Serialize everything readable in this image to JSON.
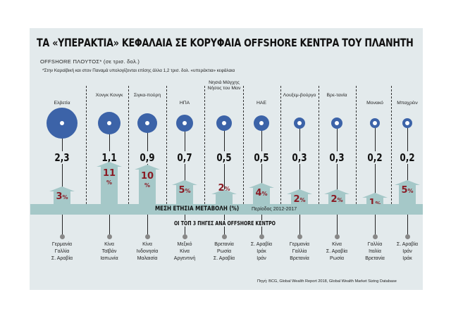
{
  "title": "ΤΑ «ΥΠΕΡΑΚΤΙΑ» ΚΕΦΑΛΑΙΑ ΣΕ ΚΟΡΥΦΑΙΑ OFFSHORE ΚΕΝΤΡΑ ΤΟΥ ΠΛΑΝΗΤΗ",
  "subtitle": "OFFSHORE ΠΛΟΥΤΟΣ* (σε τρισ. δολ.)",
  "footnote": "*Στην Καραϊβική και στον Παναμά υπολογίζονται επίσης άλλα 1,2 τρισ. δολ. «υπεράκτια» κεφάλαια",
  "band_label": "ΜΕΣΗ ΕΤΗΣΙΑ ΜΕΤΑΒΟΛΗ (%)",
  "period": "Περίοδος 2012-2017",
  "top3_label": "ΟΙ ΤΟΠ 3 ΠΗΓΕΣ ΑΝΑ OFFSHORE ΚΕΝΤΡΟ",
  "source": "Πηγή: BCG, Global Wealth Report 2018, Global Wealth Market Sizing Database",
  "colors": {
    "circle": "#3c63a8",
    "pct": "#8a1b24",
    "arrow": "#a5c8c8",
    "panel": "#e3eaec"
  },
  "chart_data": {
    "type": "bubble",
    "centers": [
      {
        "name": "Ελβετία",
        "wealth": "2,3",
        "change": 3,
        "sources": [
          "Γερμανία",
          "Γαλλία",
          "Σ. Αραβία"
        ]
      },
      {
        "name": "Χονγκ Κονγκ",
        "wealth": "1,1",
        "change": 11,
        "sources": [
          "Κίνα",
          "Ταϊβάν",
          "Ιαπωνία"
        ]
      },
      {
        "name": "Σιγκα-πούρη",
        "wealth": "0,9",
        "change": 10,
        "sources": [
          "Κίνα",
          "Ινδονησία",
          "Μαλαισία"
        ]
      },
      {
        "name": "ΗΠΑ",
        "wealth": "0,7",
        "change": 5,
        "sources": [
          "Μεξικό",
          "Κίνα",
          "Αργεντινή"
        ]
      },
      {
        "name": "Νησιά Μάγχης Νήσος του Μαν",
        "wealth": "0,5",
        "change": 2,
        "sources": [
          "Βρετανία",
          "Ρωσία",
          "Σ. Αραβία"
        ]
      },
      {
        "name": "ΗΑΕ",
        "wealth": "0,5",
        "change": 4,
        "sources": [
          "Σ. Αραβία",
          "Ιράκ",
          "Ιράν"
        ]
      },
      {
        "name": "Λουξεμ-βούργο",
        "wealth": "0,3",
        "change": 2,
        "sources": [
          "Γερμανία",
          "Γαλλία",
          "Βρετανία"
        ]
      },
      {
        "name": "Βρε-τανία",
        "wealth": "0,3",
        "change": 2,
        "sources": [
          "Κίνα",
          "Σ. Αραβία",
          "Ρωσία"
        ]
      },
      {
        "name": "Μονακό",
        "wealth": "0,2",
        "change": 1,
        "sources": [
          "Γαλλία",
          "Ιταλία",
          "Βρετανία"
        ]
      },
      {
        "name": "Μπαχρέιν",
        "wealth": "0,2",
        "change": 5,
        "sources": [
          "Σ. Αραβία",
          "Ιράν",
          "Ιράκ"
        ]
      }
    ]
  }
}
